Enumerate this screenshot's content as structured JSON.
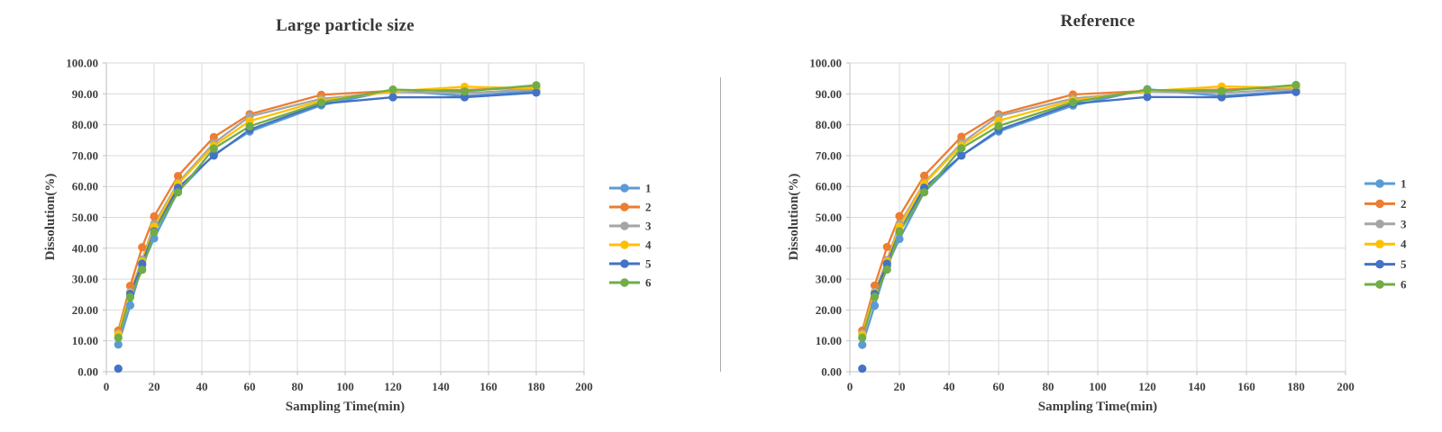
{
  "page": {
    "background": "#ffffff"
  },
  "divider": {
    "color": "#a9a9a9"
  },
  "styles": {
    "grid_color": "#d9d9d9",
    "axis_color": "#bfbfbf",
    "text_color": "#404040",
    "title_color": "#383838"
  },
  "chart_data": [
    {
      "type": "line",
      "title": "Large particle size",
      "xlabel": "Sampling Time(min)",
      "ylabel": "Dissolution(%)",
      "x": [
        5,
        10,
        15,
        20,
        30,
        45,
        60,
        90,
        120,
        150,
        180
      ],
      "xlim": [
        0,
        200
      ],
      "ylim": [
        0,
        100
      ],
      "x_tick_step": 20,
      "y_tick_step": 10,
      "y_tick_decimals": 2,
      "grid": true,
      "legend_position": "right",
      "series": [
        {
          "name": "1",
          "color": "#5B9BD5",
          "values": [
            8.8,
            21.5,
            34.4,
            43.2,
            58.4,
            70.3,
            77.8,
            86.3,
            91.2,
            89.3,
            91.0
          ]
        },
        {
          "name": "2",
          "color": "#ED7D31",
          "values": [
            13.3,
            27.8,
            40.3,
            50.3,
            63.4,
            76.0,
            83.4,
            89.7,
            91.0,
            91.3,
            92.0
          ]
        },
        {
          "name": "3",
          "color": "#A5A5A5",
          "values": [
            12.5,
            25.8,
            36.3,
            47.8,
            61.2,
            74.0,
            82.7,
            88.4,
            90.6,
            90.2,
            91.5
          ]
        },
        {
          "name": "4",
          "color": "#FFC000",
          "values": [
            12.1,
            25.5,
            35.7,
            47.0,
            60.8,
            73.2,
            81.2,
            87.8,
            90.8,
            92.3,
            91.8
          ]
        },
        {
          "name": "5",
          "color": "#4472C4",
          "values": [
            1.0,
            25.2,
            35.0,
            45.5,
            59.6,
            70.0,
            78.4,
            86.8,
            88.9,
            88.9,
            90.4
          ],
          "isolated_first_point": true
        },
        {
          "name": "6",
          "color": "#70AD47",
          "values": [
            11.0,
            24.2,
            33.0,
            45.2,
            58.1,
            72.3,
            79.5,
            87.2,
            91.4,
            90.8,
            92.8
          ]
        }
      ]
    },
    {
      "type": "line",
      "title": "Reference",
      "xlabel": "Sampling Time(min)",
      "ylabel": "Dissolution(%)",
      "x": [
        5,
        10,
        15,
        20,
        30,
        45,
        60,
        90,
        120,
        150,
        180
      ],
      "xlim": [
        0,
        200
      ],
      "ylim": [
        0,
        100
      ],
      "x_tick_step": 20,
      "y_tick_step": 10,
      "y_tick_decimals": 2,
      "grid": true,
      "legend_position": "right",
      "series": [
        {
          "name": "1",
          "color": "#5B9BD5",
          "values": [
            8.7,
            21.4,
            34.3,
            43.0,
            58.2,
            70.0,
            77.8,
            86.2,
            91.5,
            89.3,
            91.0
          ]
        },
        {
          "name": "2",
          "color": "#ED7D31",
          "values": [
            13.3,
            27.9,
            40.4,
            50.4,
            63.5,
            76.1,
            83.4,
            89.8,
            91.0,
            91.4,
            92.1
          ]
        },
        {
          "name": "3",
          "color": "#A5A5A5",
          "values": [
            12.4,
            25.8,
            36.2,
            47.8,
            61.2,
            74.0,
            82.8,
            88.5,
            90.7,
            90.3,
            91.6
          ]
        },
        {
          "name": "4",
          "color": "#FFC000",
          "values": [
            12.0,
            25.5,
            35.6,
            47.0,
            60.9,
            73.3,
            81.3,
            87.9,
            90.9,
            92.4,
            92.0
          ]
        },
        {
          "name": "5",
          "color": "#4472C4",
          "values": [
            1.0,
            25.2,
            35.0,
            45.4,
            59.6,
            70.0,
            78.3,
            86.8,
            89.0,
            88.9,
            90.6
          ],
          "isolated_first_point": true
        },
        {
          "name": "6",
          "color": "#70AD47",
          "values": [
            11.0,
            24.3,
            33.1,
            45.3,
            58.1,
            72.4,
            79.6,
            87.3,
            91.3,
            90.9,
            92.9
          ]
        }
      ]
    }
  ]
}
